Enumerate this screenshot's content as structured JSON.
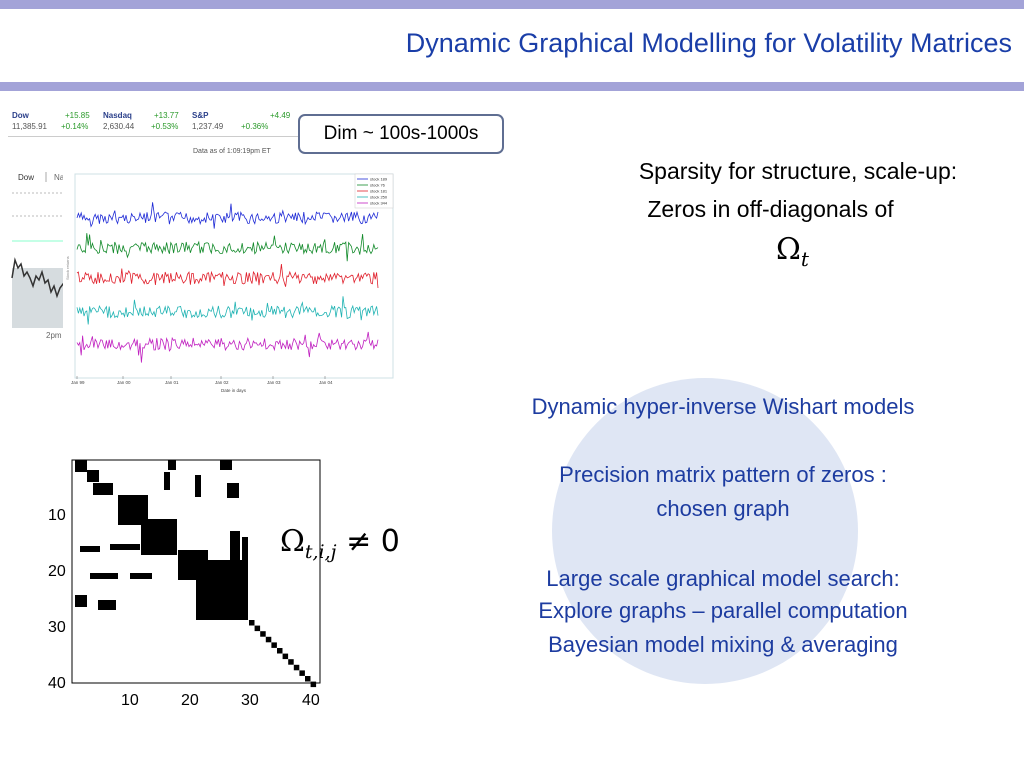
{
  "slide": {
    "title": "Dynamic Graphical Modelling for Volatility Matrices",
    "dim_box": "Dim ~ 100s-1000s",
    "sparsity_line1": "Sparsity for structure, scale-up:",
    "sparsity_line2": "Zeros in off-diagonals of",
    "omega_base": "Ω",
    "omega_sub": "t",
    "omega_expr": "≠ 0",
    "omega_expr_sub": "t,i,j",
    "bullets": [
      "Dynamic hyper-inverse Wishart models",
      "Precision matrix pattern of zeros :",
      "chosen graph",
      "Large scale graphical model search:",
      "Explore graphs – parallel computation",
      "Bayesian model mixing & averaging"
    ]
  },
  "ticker": {
    "dow_label": "Dow",
    "dow_change": "+15.85",
    "dow_value": "11,385.91",
    "dow_pct": "+0.14%",
    "nasdaq_label": "Nasdaq",
    "nasdaq_change": "+13.77",
    "nasdaq_value": "2,630.44",
    "nasdaq_pct": "+0.53%",
    "sp_label": "S&P",
    "sp_change": "+4.49",
    "sp_value": "1,237.49",
    "sp_pct": "+0.36%",
    "asof": "Data as of 1:09:19pm ET"
  },
  "mini_chart": {
    "tab_dow": "Dow",
    "tab_nas": "Nas",
    "time_label": "2pm"
  },
  "stock_chart": {
    "legend": [
      "stock 189",
      "stock 76",
      "stock 181",
      "stock 250",
      "stock 344"
    ],
    "colors": [
      "#1f2bd6",
      "#128a2a",
      "#e0202c",
      "#20b3b3",
      "#c020c0"
    ],
    "x_ticks": [
      "Jan 99",
      "Jan 00",
      "Jan 01",
      "Jan 02",
      "Jan 03",
      "Jan 04"
    ],
    "xlabel": "Date in days",
    "ylabel": "Stock returns"
  },
  "matrix_chart": {
    "x_ticks": [
      "10",
      "20",
      "30",
      "40"
    ],
    "y_ticks": [
      "10",
      "20",
      "30",
      "40"
    ]
  }
}
